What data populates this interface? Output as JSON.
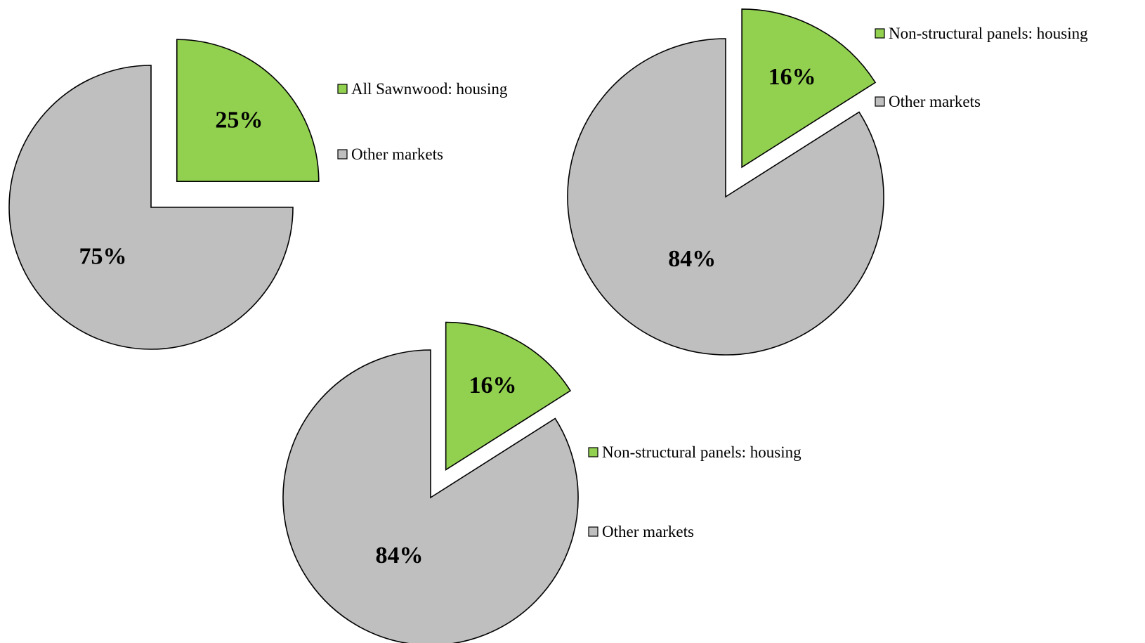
{
  "colors": {
    "housing": "#92D050",
    "other": "#BFBFBF"
  },
  "chart_data": [
    {
      "type": "pie",
      "labels": [
        "All Sawnwood: housing",
        "Other markets"
      ],
      "values": [
        25,
        75
      ],
      "value_labels": [
        "25%",
        "75%"
      ],
      "exploded": "All Sawnwood: housing",
      "legend_position": "right"
    },
    {
      "type": "pie",
      "labels": [
        "Non-structural panels: housing",
        "Other markets"
      ],
      "values": [
        16,
        84
      ],
      "value_labels": [
        "16%",
        "84%"
      ],
      "exploded": "Non-structural panels: housing",
      "legend_position": "right"
    },
    {
      "type": "pie",
      "labels": [
        "Non-structural panels: housing",
        "Other markets"
      ],
      "values": [
        16,
        84
      ],
      "value_labels": [
        "16%",
        "84%"
      ],
      "exploded": "Non-structural panels: housing",
      "legend_position": "right"
    }
  ]
}
